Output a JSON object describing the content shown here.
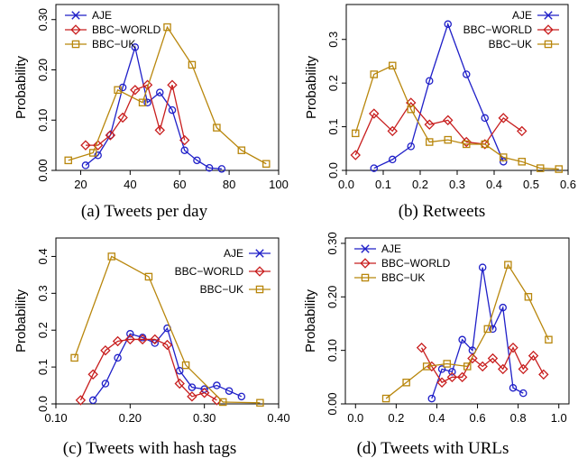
{
  "chart_data": [
    {
      "type": "line",
      "caption": "(a) Tweets per day",
      "ylabel": "Probability",
      "xlim": [
        10,
        100
      ],
      "ylim": [
        0,
        0.33
      ],
      "xticks": [
        "20",
        "40",
        "60",
        "80",
        "100"
      ],
      "yticks": [
        "0.00",
        "0.10",
        "0.20",
        "0.30"
      ],
      "legend_position": "top-left",
      "series": [
        {
          "name": "AJE",
          "color": "#1f1fc8",
          "marker": "circle",
          "x": [
            22,
            27,
            32,
            37,
            42,
            47,
            52,
            57,
            62,
            67,
            72,
            77
          ],
          "y": [
            0.01,
            0.03,
            0.07,
            0.165,
            0.245,
            0.135,
            0.155,
            0.12,
            0.04,
            0.02,
            0.005,
            0.003
          ]
        },
        {
          "name": "BBC−WORLD",
          "color": "#c81e1e",
          "marker": "diamond",
          "x": [
            22,
            27,
            32,
            37,
            42,
            47,
            52,
            57,
            62
          ],
          "y": [
            0.05,
            0.05,
            0.07,
            0.105,
            0.16,
            0.17,
            0.08,
            0.17,
            0.06
          ]
        },
        {
          "name": "BBC−UK",
          "color": "#b8860b",
          "marker": "square",
          "x": [
            15,
            25,
            35,
            45,
            55,
            65,
            75,
            85,
            95
          ],
          "y": [
            0.02,
            0.035,
            0.16,
            0.135,
            0.285,
            0.21,
            0.085,
            0.04,
            0.013
          ]
        }
      ]
    },
    {
      "type": "line",
      "caption": "(b) Retweets",
      "ylabel": "Probability",
      "xlim": [
        0,
        0.6
      ],
      "ylim": [
        0,
        0.38
      ],
      "xticks": [
        "0.0",
        "0.1",
        "0.2",
        "0.3",
        "0.4",
        "0.5",
        "0.6"
      ],
      "yticks": [
        "0.0",
        "0.1",
        "0.2",
        "0.3"
      ],
      "legend_position": "top-right",
      "series": [
        {
          "name": "AJE",
          "color": "#1f1fc8",
          "marker": "circle",
          "x": [
            0.075,
            0.125,
            0.175,
            0.225,
            0.275,
            0.325,
            0.375,
            0.425
          ],
          "y": [
            0.005,
            0.025,
            0.055,
            0.205,
            0.335,
            0.22,
            0.12,
            0.02
          ]
        },
        {
          "name": "BBC−WORLD",
          "color": "#c81e1e",
          "marker": "diamond",
          "x": [
            0.025,
            0.075,
            0.125,
            0.175,
            0.225,
            0.275,
            0.325,
            0.375,
            0.425,
            0.475
          ],
          "y": [
            0.035,
            0.13,
            0.09,
            0.155,
            0.105,
            0.115,
            0.065,
            0.06,
            0.12,
            0.09
          ]
        },
        {
          "name": "BBC−UK",
          "color": "#b8860b",
          "marker": "square",
          "x": [
            0.025,
            0.075,
            0.125,
            0.175,
            0.225,
            0.275,
            0.325,
            0.375,
            0.425,
            0.475,
            0.525,
            0.575
          ],
          "y": [
            0.085,
            0.22,
            0.24,
            0.14,
            0.065,
            0.07,
            0.06,
            0.06,
            0.03,
            0.02,
            0.005,
            0.003
          ]
        }
      ]
    },
    {
      "type": "line",
      "caption": "(c) Tweets with hash tags",
      "ylabel": "Probability",
      "xlim": [
        0.1,
        0.4
      ],
      "ylim": [
        0,
        0.45
      ],
      "xticks": [
        "0.10",
        "0.20",
        "0.30",
        "0.40"
      ],
      "yticks": [
        "0.0",
        "0.1",
        "0.2",
        "0.3",
        "0.4"
      ],
      "legend_position": "top-right",
      "series": [
        {
          "name": "AJE",
          "color": "#1f1fc8",
          "marker": "circle",
          "x": [
            0.15,
            0.1667,
            0.1833,
            0.2,
            0.2167,
            0.2333,
            0.25,
            0.2667,
            0.2833,
            0.3,
            0.3167,
            0.3333,
            0.35
          ],
          "y": [
            0.01,
            0.055,
            0.125,
            0.19,
            0.18,
            0.165,
            0.205,
            0.09,
            0.045,
            0.04,
            0.05,
            0.035,
            0.02
          ]
        },
        {
          "name": "BBC−WORLD",
          "color": "#c81e1e",
          "marker": "diamond",
          "x": [
            0.1333,
            0.15,
            0.1667,
            0.1833,
            0.2,
            0.2167,
            0.2333,
            0.25,
            0.2667,
            0.2833,
            0.3,
            0.3167
          ],
          "y": [
            0.01,
            0.08,
            0.145,
            0.17,
            0.175,
            0.175,
            0.175,
            0.16,
            0.055,
            0.02,
            0.03,
            0.01
          ]
        },
        {
          "name": "BBC−UK",
          "color": "#b8860b",
          "marker": "square",
          "x": [
            0.125,
            0.175,
            0.225,
            0.275,
            0.325,
            0.375
          ],
          "y": [
            0.125,
            0.4,
            0.345,
            0.105,
            0.005,
            0.003
          ]
        }
      ]
    },
    {
      "type": "line",
      "caption": "(d) Tweets with URLs",
      "ylabel": "Probability",
      "xlim": [
        -0.05,
        1.05
      ],
      "ylim": [
        0,
        0.31
      ],
      "xticks": [
        "0.0",
        "0.2",
        "0.4",
        "0.6",
        "0.8",
        "1.0"
      ],
      "yticks": [
        "0.00",
        "0.10",
        "0.20",
        "0.30"
      ],
      "legend_position": "top-left",
      "series": [
        {
          "name": "AJE",
          "color": "#1f1fc8",
          "marker": "circle",
          "x": [
            0.375,
            0.425,
            0.475,
            0.525,
            0.575,
            0.625,
            0.675,
            0.725,
            0.775,
            0.825
          ],
          "y": [
            0.01,
            0.065,
            0.06,
            0.12,
            0.1,
            0.255,
            0.14,
            0.18,
            0.03,
            0.02
          ]
        },
        {
          "name": "BBC−WORLD",
          "color": "#c81e1e",
          "marker": "diamond",
          "x": [
            0.325,
            0.375,
            0.425,
            0.475,
            0.525,
            0.575,
            0.625,
            0.675,
            0.725,
            0.775,
            0.825,
            0.875,
            0.925
          ],
          "y": [
            0.105,
            0.07,
            0.04,
            0.05,
            0.05,
            0.085,
            0.07,
            0.085,
            0.065,
            0.105,
            0.065,
            0.09,
            0.055
          ]
        },
        {
          "name": "BBC−UK",
          "color": "#b8860b",
          "marker": "square",
          "x": [
            0.15,
            0.25,
            0.35,
            0.45,
            0.55,
            0.65,
            0.75,
            0.85,
            0.95
          ],
          "y": [
            0.01,
            0.04,
            0.07,
            0.075,
            0.07,
            0.14,
            0.26,
            0.2,
            0.12
          ]
        }
      ]
    }
  ]
}
